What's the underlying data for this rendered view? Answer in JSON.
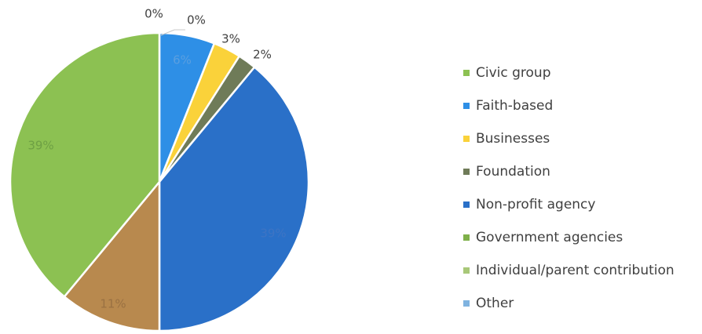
{
  "chart_data": {
    "type": "pie",
    "title": "",
    "start_angle_deg": 0,
    "direction": "clockwise",
    "legend_position": "right",
    "slices": [
      {
        "label": "Other",
        "value": 0,
        "value_label": "0%",
        "color": "#7fb3e0",
        "label_color": "#404040"
      },
      {
        "label": "Faith-based",
        "value": 6,
        "value_label": "6%",
        "color": "#2e8fe6",
        "label_color": "#5a9fe0"
      },
      {
        "label": "Businesses",
        "value": 3,
        "value_label": "3%",
        "color": "#fad23a",
        "label_color": "#404040"
      },
      {
        "label": "Foundation",
        "value": 2,
        "value_label": "2%",
        "color": "#6f7b58",
        "label_color": "#404040"
      },
      {
        "label": "Non-profit agency",
        "value": 39,
        "value_label": "39%",
        "color": "#2a70c8",
        "label_color": "#3d74c4"
      },
      {
        "label": "Individual/parent contribution",
        "value": 11,
        "value_label": "11%",
        "color": "#b8894e",
        "label_color": "#9a7142"
      },
      {
        "label": "Civic group",
        "value": 39,
        "value_label": "39%",
        "color": "#8cc152",
        "label_color": "#6ea044"
      },
      {
        "label": "Government agencies",
        "value": 0,
        "value_label": "0%",
        "color": "#7fb04a",
        "label_color": "#404040"
      }
    ],
    "legend_order": [
      {
        "label": "Civic group",
        "color": "#8cc152"
      },
      {
        "label": "Faith-based",
        "color": "#2e8fe6"
      },
      {
        "label": "Businesses",
        "color": "#fad23a"
      },
      {
        "label": "Foundation",
        "color": "#6f7b58"
      },
      {
        "label": "Non-profit agency",
        "color": "#2a70c8"
      },
      {
        "label": "Government agencies",
        "color": "#7fb04a"
      },
      {
        "label": "Individual/parent contribution",
        "color": "#a8c878"
      },
      {
        "label": "Other",
        "color": "#7fb3e0"
      }
    ]
  }
}
